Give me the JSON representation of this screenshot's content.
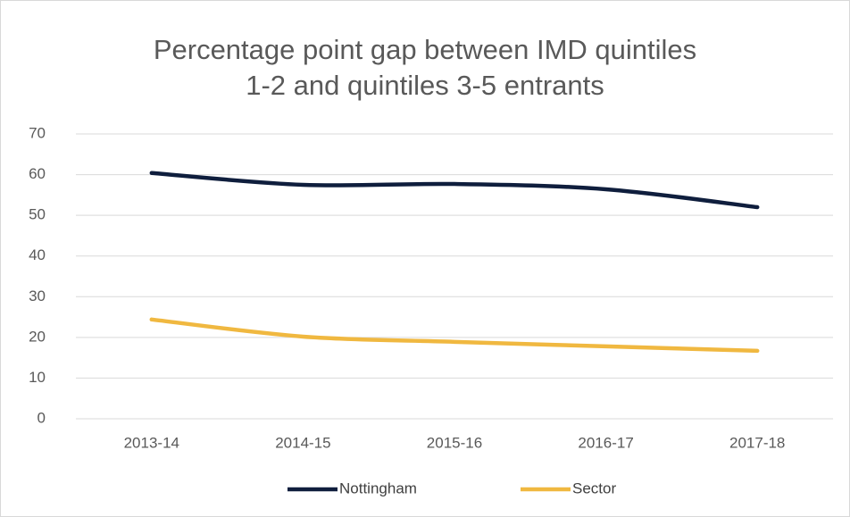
{
  "chart_data": {
    "type": "line",
    "title": [
      "Percentage point gap between IMD quintiles",
      "1-2 and quintiles 3-5 entrants"
    ],
    "categories": [
      "2013-14",
      "2014-15",
      "2015-16",
      "2016-17",
      "2017-18"
    ],
    "series": [
      {
        "name": "Nottingham",
        "color": "#0f1e3d",
        "values": [
          60.4,
          57.5,
          57.7,
          56.4,
          52.0
        ]
      },
      {
        "name": "Sector",
        "color": "#f0b840",
        "values": [
          24.4,
          20.2,
          18.9,
          17.8,
          16.7
        ]
      }
    ],
    "ylim": [
      0,
      70
    ],
    "yticks": [
      0,
      10,
      20,
      30,
      40,
      50,
      60,
      70
    ],
    "grid": true,
    "smooth": true,
    "legend": "bottom"
  }
}
